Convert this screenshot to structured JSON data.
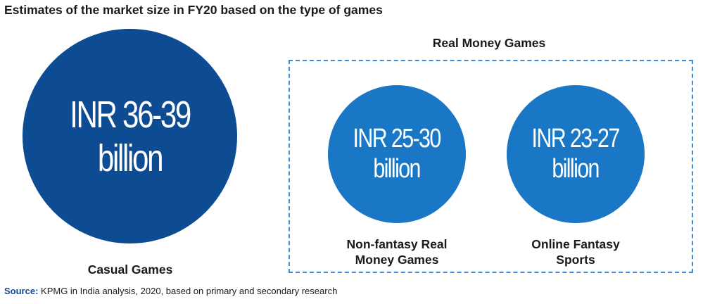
{
  "title": "Estimates of the market size in FY20 based on the type of games",
  "group_label": "Real Money Games",
  "source": {
    "prefix": "Source:",
    "text": " KPMG in India analysis, 2020, based on primary and secondary research"
  },
  "colors": {
    "casual": "#0d4b92",
    "real_money": "#1977c5",
    "box_border": "#3b8ed6"
  },
  "chart_data": {
    "type": "bubble",
    "title": "Estimates of the market size in FY20 based on the type of games",
    "unit": "INR billion",
    "items": [
      {
        "name": "Casual Games",
        "group": "",
        "low": 36,
        "high": 39,
        "line1": "INR 36-39",
        "line2": "billion"
      },
      {
        "name": "Non-fantasy Real Money Games",
        "group": "Real Money Games",
        "low": 25,
        "high": 30,
        "line1": "INR 25-30",
        "line2": "billion"
      },
      {
        "name": "Online Fantasy Sports",
        "group": "Real Money Games",
        "low": 23,
        "high": 27,
        "line1": "INR 23-27",
        "line2": "billion"
      }
    ]
  }
}
